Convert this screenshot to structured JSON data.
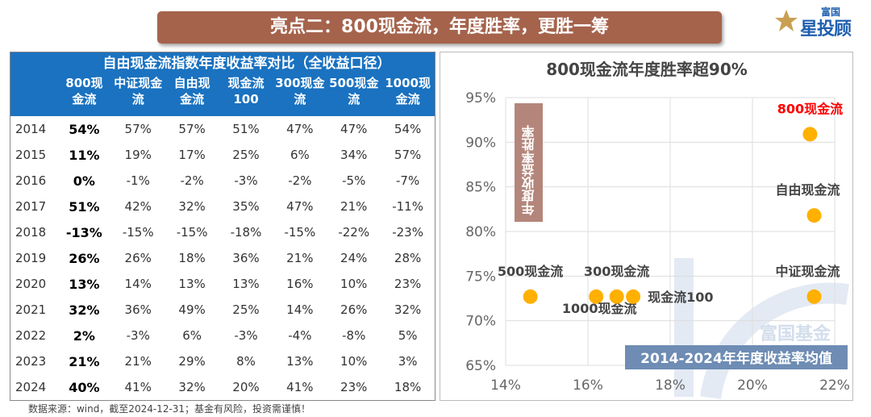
{
  "banner": {
    "title": "亮点二：800现金流，年度胜率，更胜一筹"
  },
  "logo": {
    "top": "富国",
    "main": "星投顾"
  },
  "table": {
    "title": "自由现金流指数年度收益率对比（全收益口径）",
    "columns": [
      "800现\n金流",
      "中证现金\n流",
      "自由现\n金流",
      "现金流\n100",
      "300现金\n流",
      "500现金\n流",
      "1000现\n金流"
    ],
    "rows": [
      {
        "year": "2014",
        "values": [
          "54%",
          "57%",
          "57%",
          "51%",
          "47%",
          "47%",
          "54%"
        ]
      },
      {
        "year": "2015",
        "values": [
          "11%",
          "19%",
          "17%",
          "25%",
          "6%",
          "34%",
          "57%"
        ]
      },
      {
        "year": "2016",
        "values": [
          "0%",
          "-1%",
          "-2%",
          "-3%",
          "-2%",
          "-5%",
          "-7%"
        ]
      },
      {
        "year": "2017",
        "values": [
          "51%",
          "42%",
          "32%",
          "35%",
          "47%",
          "21%",
          "-11%"
        ]
      },
      {
        "year": "2018",
        "values": [
          "-13%",
          "-15%",
          "-15%",
          "-18%",
          "-15%",
          "-22%",
          "-23%"
        ]
      },
      {
        "year": "2019",
        "values": [
          "26%",
          "26%",
          "18%",
          "36%",
          "21%",
          "24%",
          "28%"
        ]
      },
      {
        "year": "2020",
        "values": [
          "13%",
          "14%",
          "13%",
          "13%",
          "16%",
          "10%",
          "23%"
        ]
      },
      {
        "year": "2021",
        "values": [
          "32%",
          "36%",
          "49%",
          "25%",
          "14%",
          "26%",
          "32%"
        ]
      },
      {
        "year": "2022",
        "values": [
          "2%",
          "-3%",
          "6%",
          "-3%",
          "-4%",
          "-8%",
          "5%"
        ]
      },
      {
        "year": "2023",
        "values": [
          "21%",
          "21%",
          "29%",
          "8%",
          "13%",
          "10%",
          "3%"
        ]
      },
      {
        "year": "2024",
        "values": [
          "40%",
          "41%",
          "32%",
          "20%",
          "41%",
          "23%",
          "18%"
        ]
      }
    ]
  },
  "chart_data": {
    "type": "scatter",
    "title": "800现金流年度胜率超90%",
    "ylabel": "年度收益率胜率",
    "xlabel": "2014-2024年年度收益率均值",
    "xlim": [
      14,
      22
    ],
    "ylim": [
      65,
      95
    ],
    "xticks": [
      "14%",
      "16%",
      "18%",
      "20%",
      "22%"
    ],
    "yticks": [
      "65%",
      "70%",
      "75%",
      "80%",
      "85%",
      "90%",
      "95%"
    ],
    "grid": true,
    "points": [
      {
        "name": "800现金流",
        "x": 21.4,
        "y": 90.9,
        "highlight": true
      },
      {
        "name": "自由现金流",
        "x": 21.5,
        "y": 81.8
      },
      {
        "name": "中证现金流",
        "x": 21.5,
        "y": 72.7
      },
      {
        "name": "500现金流",
        "x": 14.6,
        "y": 72.7
      },
      {
        "name": "1000现金流",
        "x": 16.2,
        "y": 72.7
      },
      {
        "name": "300现金流",
        "x": 16.7,
        "y": 72.7
      },
      {
        "name": "现金流100",
        "x": 17.1,
        "y": 72.7
      }
    ],
    "watermark": "富国基金",
    "colors": {
      "point": "#FFB000",
      "highlight_label": "#FF0000",
      "ylabel_bg": "#B4867B",
      "xlabel_bg": "#6E8CB4"
    }
  },
  "footer": "数据来源：wind，截至2024-12-31；基金有风险，投资需谨慎！"
}
